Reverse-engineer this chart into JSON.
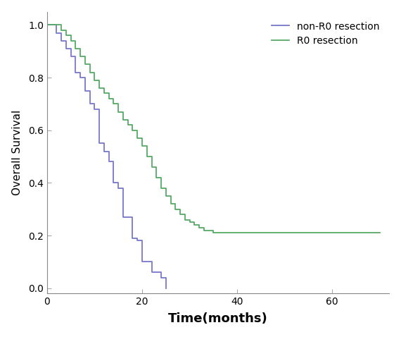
{
  "xlabel": "Time(months)",
  "ylabel": "Overall Survival",
  "xlim": [
    0,
    72
  ],
  "ylim": [
    -0.02,
    1.05
  ],
  "xticks": [
    0,
    20,
    40,
    60
  ],
  "yticks": [
    0.0,
    0.2,
    0.4,
    0.6,
    0.8,
    1.0
  ],
  "non_r0": {
    "times": [
      0,
      1,
      2,
      3,
      4,
      5,
      6,
      7,
      8,
      9,
      10,
      11,
      12,
      13,
      14,
      15,
      16,
      17,
      18,
      19,
      20,
      21,
      22,
      23,
      24,
      25
    ],
    "survival": [
      1.0,
      1.0,
      0.97,
      0.94,
      0.91,
      0.88,
      0.82,
      0.8,
      0.75,
      0.7,
      0.68,
      0.55,
      0.52,
      0.48,
      0.4,
      0.38,
      0.27,
      0.27,
      0.19,
      0.18,
      0.1,
      0.1,
      0.06,
      0.06,
      0.04,
      0.0
    ],
    "color": "#7777cc",
    "label": "non-R0 resection"
  },
  "r0": {
    "times": [
      0,
      2,
      3,
      4,
      5,
      6,
      7,
      8,
      9,
      10,
      11,
      12,
      13,
      14,
      15,
      16,
      17,
      18,
      19,
      20,
      21,
      22,
      23,
      24,
      25,
      26,
      27,
      28,
      29,
      30,
      31,
      32,
      33,
      34,
      35,
      36,
      37,
      38,
      70
    ],
    "survival": [
      1.0,
      1.0,
      0.98,
      0.96,
      0.94,
      0.91,
      0.88,
      0.85,
      0.82,
      0.79,
      0.76,
      0.74,
      0.72,
      0.7,
      0.67,
      0.64,
      0.62,
      0.6,
      0.57,
      0.54,
      0.5,
      0.46,
      0.42,
      0.38,
      0.35,
      0.32,
      0.3,
      0.28,
      0.26,
      0.25,
      0.24,
      0.23,
      0.22,
      0.22,
      0.21,
      0.21,
      0.21,
      0.21,
      0.21
    ],
    "color": "#55aa66",
    "label": "R0 resection"
  },
  "legend_loc": "upper right",
  "background_color": "#ffffff",
  "fontsize_ylabel": 11,
  "fontsize_xlabel": 13,
  "fontsize_ticks": 10,
  "fontsize_legend": 10,
  "linewidth": 1.3
}
